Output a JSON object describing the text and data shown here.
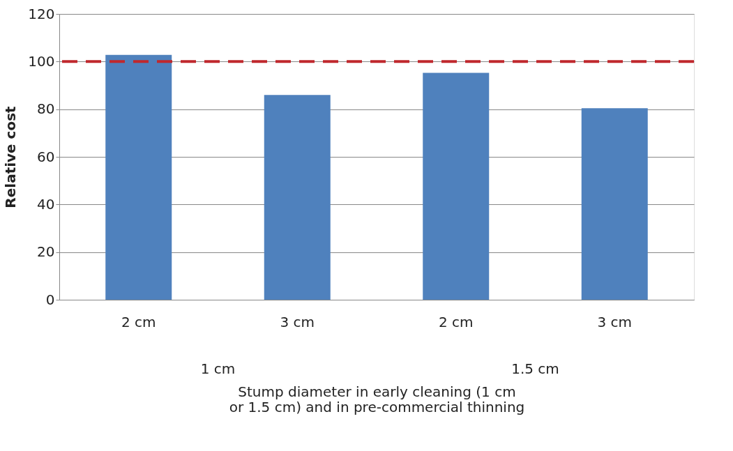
{
  "chart_data": {
    "type": "bar",
    "xlabel": "Stump diameter in early cleaning (1 cm or 1.5 cm) and in pre-commercial thinning",
    "ylabel": "Relative cost",
    "categories": [
      "2 cm",
      "3 cm",
      "2 cm",
      "3 cm"
    ],
    "values": [
      102.8,
      86.0,
      95.3,
      80.4
    ],
    "color": "#4f81bd",
    "ylim": [
      0,
      120
    ],
    "yticks": [
      0,
      20,
      40,
      60,
      80,
      100,
      120
    ],
    "grid": "y",
    "ref_lines": [
      {
        "axis": "y",
        "value": 100,
        "color": "#c0282d",
        "line_style": "dashed"
      }
    ],
    "annotations": [
      "1 cm",
      "1.5 cm"
    ]
  }
}
